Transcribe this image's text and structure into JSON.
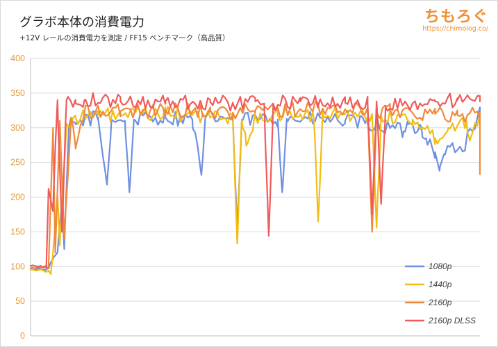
{
  "header": {
    "title": "グラボ本体の消費電力",
    "subtitle": "+12V レールの消費電力を測定 / FF15 ベンチマーク（高品質）",
    "brand_name": "ちもろぐ",
    "brand_url": "https://chimolog.co/"
  },
  "chart_data": {
    "type": "line",
    "ylim": [
      0,
      400
    ],
    "yticks": [
      0,
      50,
      100,
      150,
      200,
      250,
      300,
      350,
      400
    ],
    "grid": true,
    "legend_position": "bottom-right",
    "series": [
      {
        "name": "1080p",
        "color": "#6f8fe0"
      },
      {
        "name": "1440p",
        "color": "#f2bd14"
      },
      {
        "name": "2160p",
        "color": "#ef8a3c"
      },
      {
        "name": "2160p DLSS",
        "color": "#f05a5a"
      }
    ],
    "anchors": [
      [
        [
          0,
          97
        ],
        [
          0.03,
          96
        ],
        [
          0.04,
          97
        ],
        [
          0.05,
          112
        ],
        [
          0.06,
          120
        ],
        [
          0.07,
          190
        ],
        [
          0.075,
          125
        ],
        [
          0.085,
          300
        ],
        [
          0.1,
          305
        ],
        [
          0.12,
          312
        ],
        [
          0.15,
          315
        ],
        [
          0.17,
          218
        ],
        [
          0.18,
          312
        ],
        [
          0.21,
          310
        ],
        [
          0.22,
          207
        ],
        [
          0.23,
          312
        ],
        [
          0.3,
          315
        ],
        [
          0.36,
          312
        ],
        [
          0.38,
          232
        ],
        [
          0.39,
          315
        ],
        [
          0.45,
          314
        ],
        [
          0.46,
          152
        ],
        [
          0.47,
          312
        ],
        [
          0.55,
          312
        ],
        [
          0.56,
          207
        ],
        [
          0.57,
          313
        ],
        [
          0.65,
          312
        ],
        [
          0.7,
          310
        ],
        [
          0.75,
          305
        ],
        [
          0.8,
          300
        ],
        [
          0.83,
          295
        ],
        [
          0.84,
          305
        ],
        [
          0.87,
          300
        ],
        [
          0.88,
          285
        ],
        [
          0.9,
          265
        ],
        [
          0.91,
          238
        ],
        [
          0.92,
          262
        ],
        [
          0.94,
          275
        ],
        [
          0.96,
          268
        ],
        [
          1.0,
          320
        ]
      ],
      [
        [
          0,
          96
        ],
        [
          0.04,
          94
        ],
        [
          0.045,
          89
        ],
        [
          0.05,
          120
        ],
        [
          0.06,
          200
        ],
        [
          0.065,
          130
        ],
        [
          0.08,
          306
        ],
        [
          0.1,
          315
        ],
        [
          0.15,
          318
        ],
        [
          0.2,
          318
        ],
        [
          0.25,
          320
        ],
        [
          0.3,
          320
        ],
        [
          0.36,
          318
        ],
        [
          0.4,
          316
        ],
        [
          0.45,
          315
        ],
        [
          0.46,
          133
        ],
        [
          0.47,
          312
        ],
        [
          0.48,
          274
        ],
        [
          0.5,
          316
        ],
        [
          0.55,
          318
        ],
        [
          0.6,
          320
        ],
        [
          0.63,
          316
        ],
        [
          0.64,
          165
        ],
        [
          0.65,
          318
        ],
        [
          0.7,
          320
        ],
        [
          0.75,
          316
        ],
        [
          0.76,
          320
        ],
        [
          0.77,
          156
        ],
        [
          0.78,
          318
        ],
        [
          0.85,
          312
        ],
        [
          0.9,
          285
        ],
        [
          0.93,
          300
        ],
        [
          0.97,
          310
        ],
        [
          0.98,
          287
        ],
        [
          1.0,
          318
        ]
      ],
      [
        [
          0,
          98
        ],
        [
          0.03,
          99
        ],
        [
          0.04,
          100
        ],
        [
          0.05,
          300
        ],
        [
          0.055,
          120
        ],
        [
          0.065,
          310
        ],
        [
          0.075,
          140
        ],
        [
          0.09,
          315
        ],
        [
          0.1,
          270
        ],
        [
          0.12,
          322
        ],
        [
          0.2,
          324
        ],
        [
          0.3,
          326
        ],
        [
          0.4,
          324
        ],
        [
          0.45,
          322
        ],
        [
          0.5,
          325
        ],
        [
          0.6,
          327
        ],
        [
          0.7,
          326
        ],
        [
          0.75,
          325
        ],
        [
          0.76,
          150
        ],
        [
          0.77,
          322
        ],
        [
          0.8,
          326
        ],
        [
          0.9,
          320
        ],
        [
          0.95,
          318
        ],
        [
          1.0,
          322
        ],
        [
          1.0,
          232
        ]
      ],
      [
        [
          0,
          101
        ],
        [
          0.03,
          100
        ],
        [
          0.035,
          98
        ],
        [
          0.04,
          212
        ],
        [
          0.05,
          183
        ],
        [
          0.06,
          340
        ],
        [
          0.07,
          150
        ],
        [
          0.08,
          340
        ],
        [
          0.1,
          335
        ],
        [
          0.12,
          340
        ],
        [
          0.2,
          338
        ],
        [
          0.3,
          338
        ],
        [
          0.4,
          337
        ],
        [
          0.45,
          335
        ],
        [
          0.5,
          338
        ],
        [
          0.52,
          335
        ],
        [
          0.53,
          144
        ],
        [
          0.54,
          335
        ],
        [
          0.6,
          338
        ],
        [
          0.7,
          336
        ],
        [
          0.75,
          335
        ],
        [
          0.76,
          175
        ],
        [
          0.77,
          338
        ],
        [
          0.78,
          190
        ],
        [
          0.79,
          330
        ],
        [
          0.85,
          335
        ],
        [
          0.9,
          338
        ],
        [
          0.95,
          340
        ],
        [
          1.0,
          337
        ]
      ]
    ]
  }
}
